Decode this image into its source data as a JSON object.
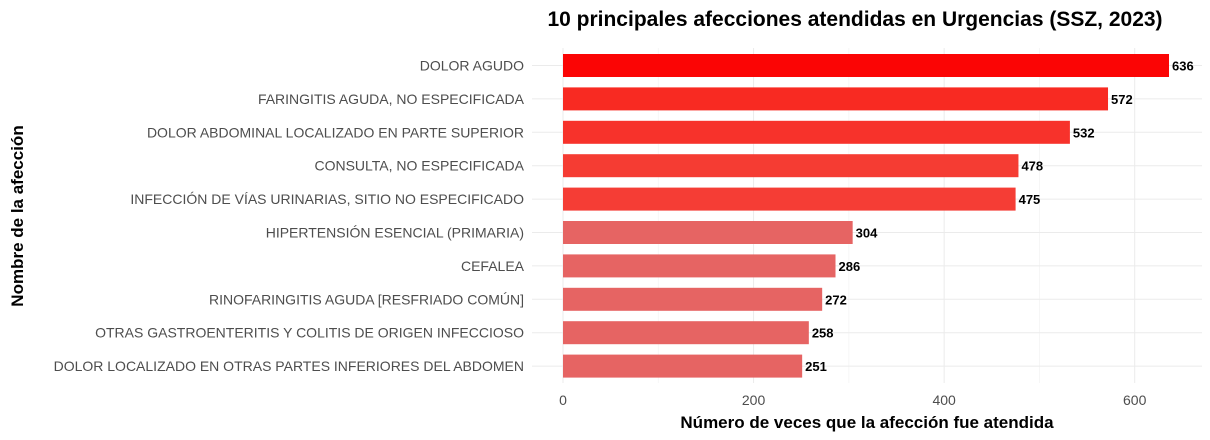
{
  "chart_data": {
    "type": "bar",
    "orientation": "horizontal",
    "title": "10 principales afecciones atendidas en Urgencias (SSZ, 2023)",
    "xlabel": "Número de veces que la afección fue atendida",
    "ylabel": "Nombre de la afección",
    "categories": [
      "DOLOR AGUDO",
      "FARINGITIS AGUDA, NO ESPECIFICADA",
      "DOLOR ABDOMINAL LOCALIZADO EN PARTE SUPERIOR",
      "CONSULTA, NO ESPECIFICADA",
      "INFECCIÓN DE VÍAS URINARIAS, SITIO NO ESPECIFICADO",
      "HIPERTENSIÓN ESENCIAL (PRIMARIA)",
      "CEFALEA",
      "RINOFARINGITIS AGUDA [RESFRIADO COMÚN]",
      "OTRAS GASTROENTERITIS Y COLITIS DE ORIGEN INFECCIOSO",
      "DOLOR LOCALIZADO EN OTRAS PARTES INFERIORES DEL ABDOMEN"
    ],
    "values": [
      636,
      572,
      532,
      478,
      475,
      304,
      286,
      272,
      258,
      251
    ],
    "colors": [
      "#fb0505",
      "#f82a22",
      "#f7322b",
      "#f53c33",
      "#f53d35",
      "#e66463",
      "#e66463",
      "#e66463",
      "#e66463",
      "#e66463"
    ],
    "xlim": [
      0,
      668
    ],
    "xticks": [
      0,
      200,
      400,
      600
    ],
    "grid": true,
    "legend": "none"
  }
}
